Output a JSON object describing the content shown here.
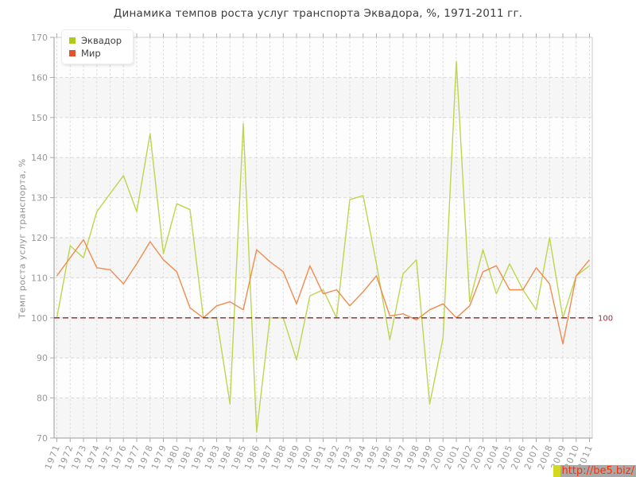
{
  "page": {
    "title": "Динамика темпов роста услуг транспорта Эквадора, %, 1971-2011 гг."
  },
  "legend": {
    "items": [
      {
        "label": "Эквадор",
        "color": "#aecb18"
      },
      {
        "label": "Мир",
        "color": "#e0532c"
      }
    ]
  },
  "watermark": {
    "text": "http://be5.biz/"
  },
  "chart_data": {
    "type": "line",
    "title": "Динамика темпов роста услуг транспорта Эквадора, %, 1971-2011 гг.",
    "xlabel": "",
    "ylabel": "Темп роста услуг транспорта, %",
    "ylim": [
      70,
      170
    ],
    "yticks": [
      70,
      80,
      90,
      100,
      110,
      120,
      130,
      140,
      150,
      160,
      170
    ],
    "grid": "dashed",
    "legend_position": "top-left",
    "baseline": {
      "value": 100,
      "label": "100",
      "color": "#8b2434"
    },
    "categories": [
      "1971",
      "1972",
      "1973",
      "1974",
      "1975",
      "1976",
      "1977",
      "1978",
      "1979",
      "1980",
      "1981",
      "1982",
      "1983",
      "1984",
      "1985",
      "1986",
      "1987",
      "1988",
      "1989",
      "1990",
      "1991",
      "1992",
      "1993",
      "1994",
      "1995",
      "1996",
      "1997",
      "1998",
      "1999",
      "2000",
      "2001",
      "2002",
      "2003",
      "2004",
      "2005",
      "2006",
      "2007",
      "2008",
      "2009",
      "2010",
      "2011"
    ],
    "series": [
      {
        "name": "Эквадор",
        "color": "#bdd64e",
        "values": [
          100,
          118,
          115,
          126.5,
          131,
          135.5,
          126.5,
          146,
          116,
          128.5,
          127,
          100,
          100,
          78.5,
          148.5,
          71.5,
          100,
          100,
          89.5,
          105.5,
          107,
          100,
          129.5,
          130.5,
          113.5,
          94.5,
          111,
          114.5,
          78.5,
          95,
          164,
          104,
          117,
          106,
          113.5,
          107,
          102,
          120,
          100,
          110.5,
          113
        ]
      },
      {
        "name": "Мир",
        "color": "#f08c50",
        "values": [
          110.5,
          115,
          119.5,
          112.5,
          112,
          108.5,
          113.5,
          119,
          114.5,
          111.5,
          102.5,
          100,
          103,
          104,
          102,
          117,
          114,
          111.5,
          103.5,
          113,
          106,
          107,
          103,
          106.5,
          110.5,
          100.5,
          101,
          99.5,
          102,
          103.5,
          100,
          103,
          111.5,
          113,
          107,
          107,
          112.5,
          108.5,
          93.5,
          110.5,
          114.5
        ]
      }
    ]
  }
}
